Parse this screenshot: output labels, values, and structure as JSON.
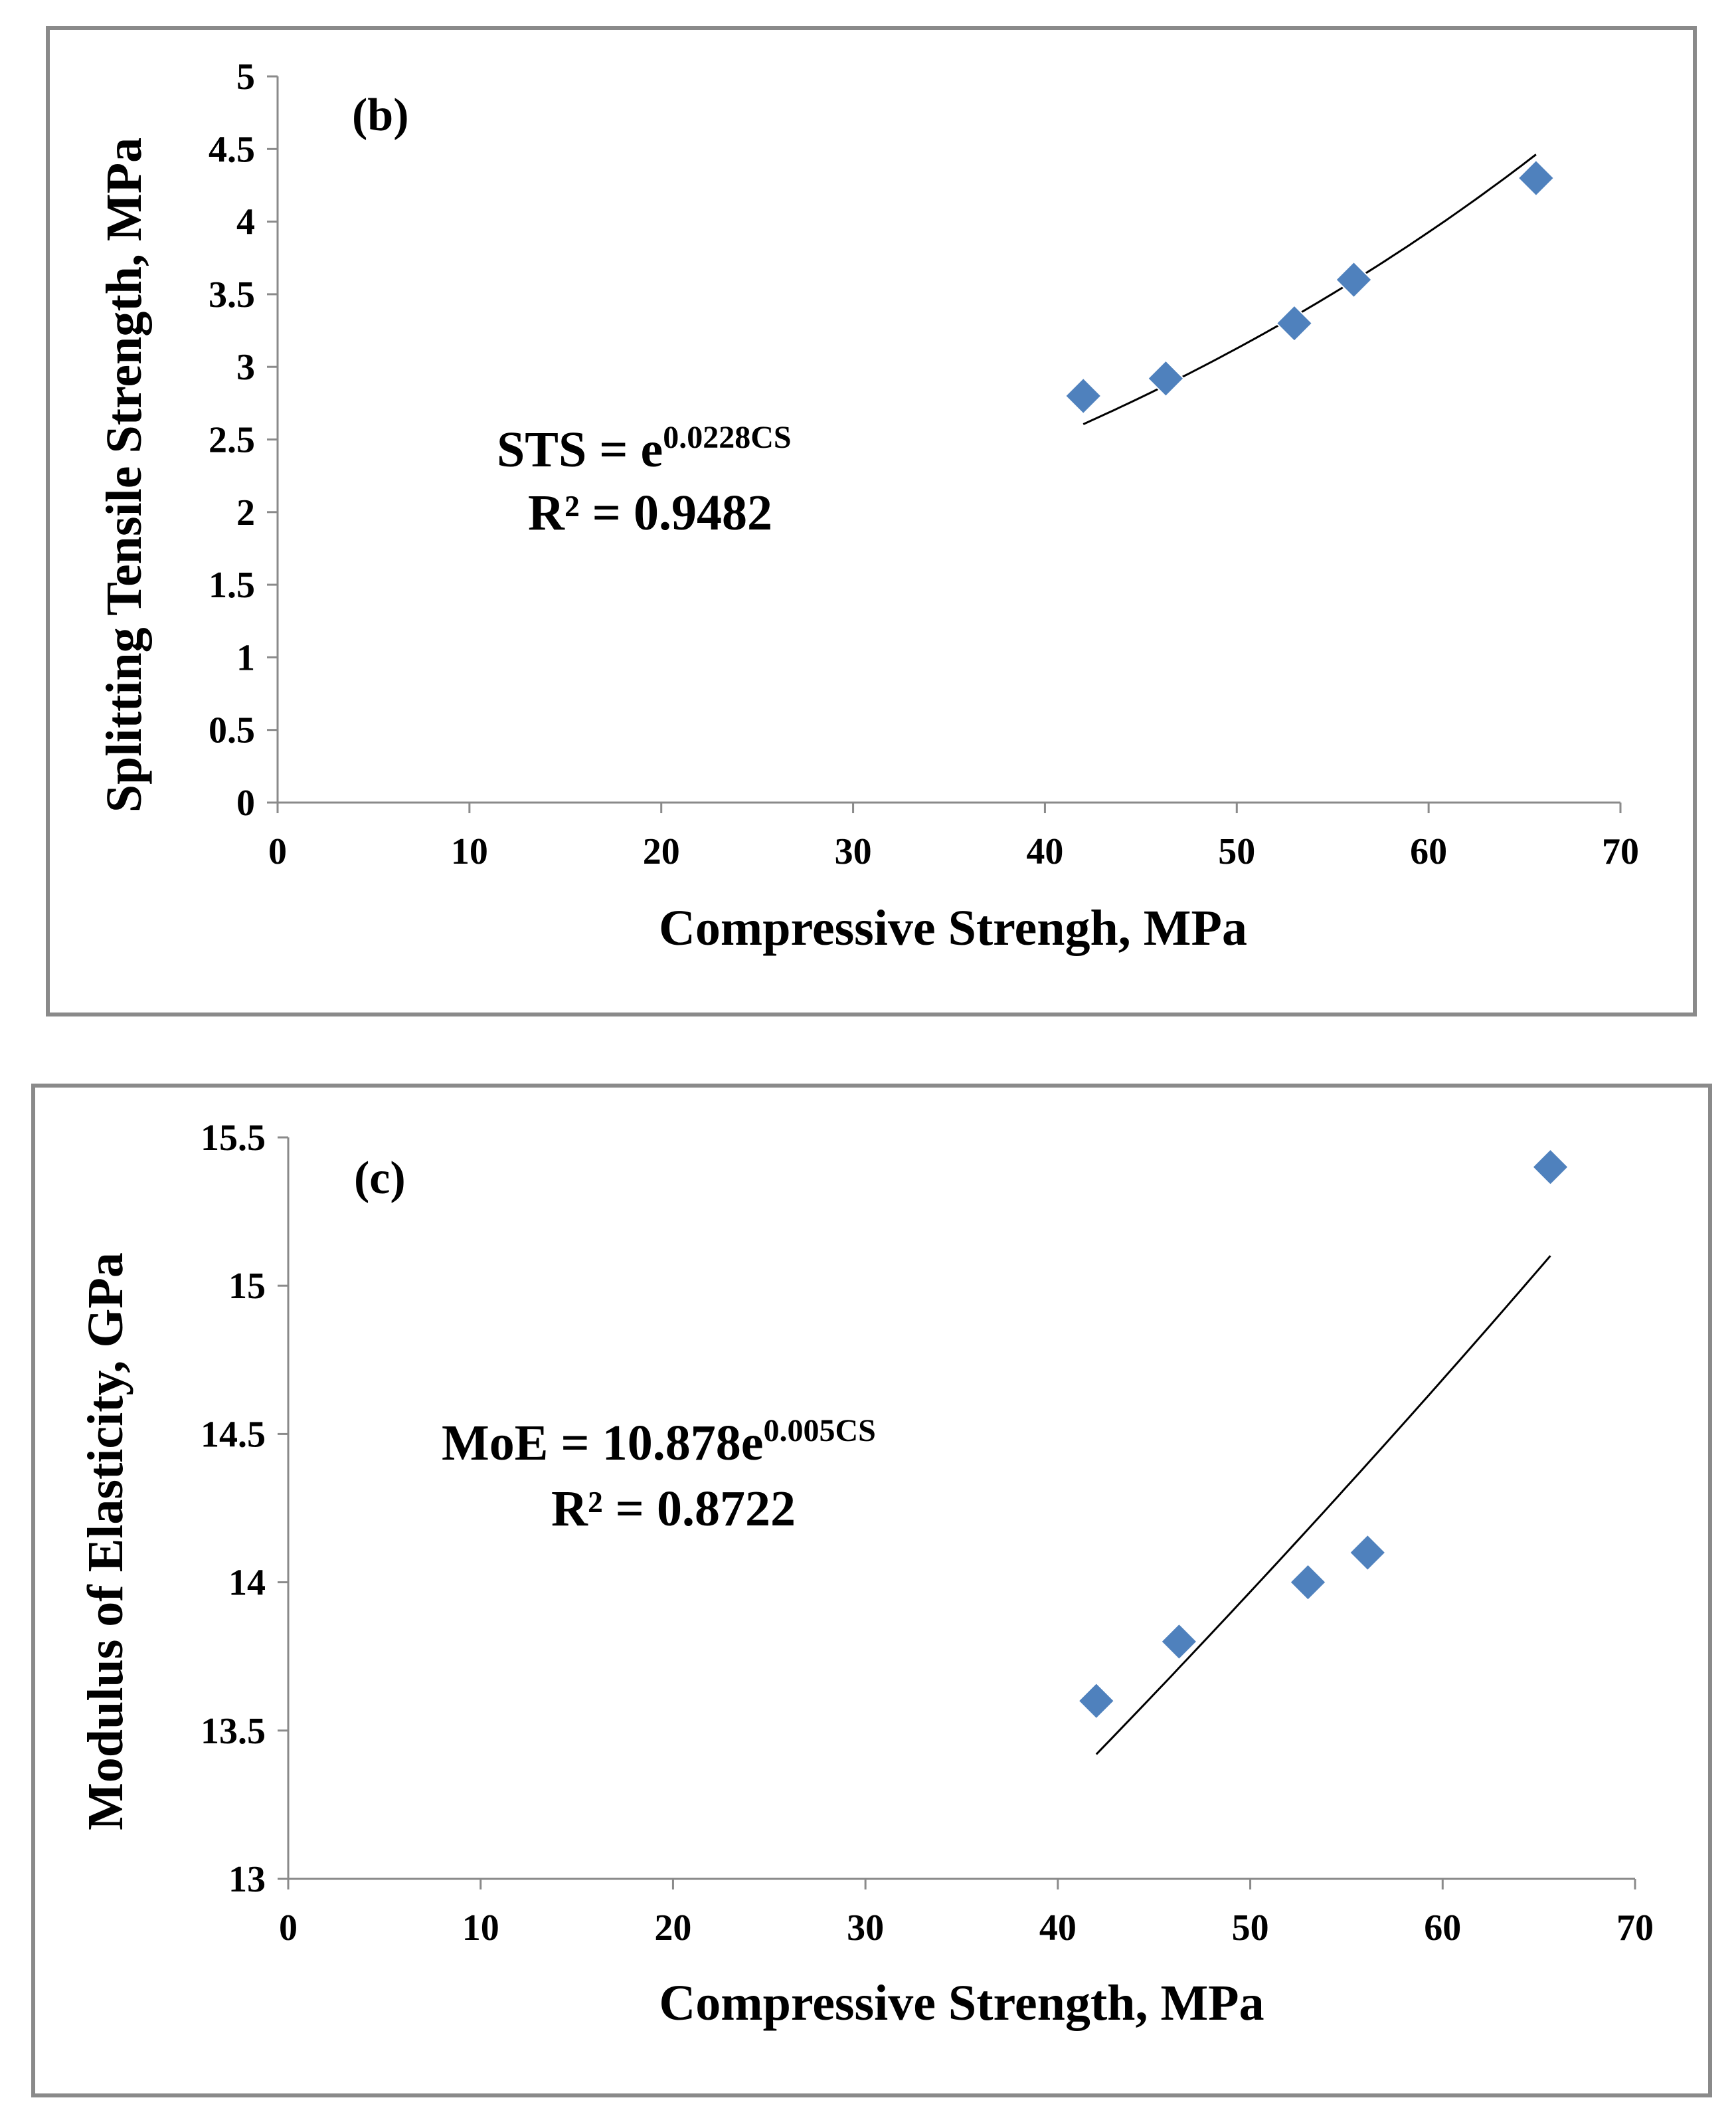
{
  "chart_data": [
    {
      "type": "scatter",
      "panel_label": "(b)",
      "xlabel": "Compressive Strengh, MPa",
      "ylabel": "Splitting Tensile Strength, MPa",
      "xlim": [
        0,
        70
      ],
      "ylim": [
        0,
        5
      ],
      "xticks": [
        0,
        10,
        20,
        30,
        40,
        50,
        60,
        70
      ],
      "xtick_labels": [
        "0",
        "10",
        "20",
        "30",
        "40",
        "50",
        "60",
        "70"
      ],
      "yticks": [
        0,
        0.5,
        1,
        1.5,
        2,
        2.5,
        3,
        3.5,
        4,
        4.5,
        5
      ],
      "ytick_labels": [
        "0",
        "0.5",
        "1",
        "1.5",
        "2",
        "2.5",
        "3",
        "3.5",
        "4",
        "4.5",
        "5"
      ],
      "x": [
        42,
        46.3,
        53,
        56.1,
        65.6
      ],
      "y": [
        2.8,
        2.92,
        3.3,
        3.6,
        4.3
      ],
      "trendline": {
        "type": "exponential",
        "a": 1,
        "b": 0.0228,
        "x_range": [
          42,
          65.6
        ]
      },
      "equation_main": "STS = e",
      "equation_exponent": "0.0228CS",
      "r_squared": "R² = 0.9482",
      "marker_color": "#4f81bd",
      "grid": false,
      "legend": "none"
    },
    {
      "type": "scatter",
      "panel_label": "(c)",
      "xlabel": "Compressive Strength, MPa",
      "ylabel": "Modulus of Elasticity, GPa",
      "xlim": [
        0,
        70
      ],
      "ylim": [
        13,
        15.5
      ],
      "xticks": [
        0,
        10,
        20,
        30,
        40,
        50,
        60,
        70
      ],
      "xtick_labels": [
        "0",
        "10",
        "20",
        "30",
        "40",
        "50",
        "60",
        "70"
      ],
      "yticks": [
        13,
        13.5,
        14,
        14.5,
        15,
        15.5
      ],
      "ytick_labels": [
        "13",
        "13.5",
        "14",
        "14.5",
        "15",
        "15.5"
      ],
      "x": [
        42,
        46.3,
        53,
        56.1,
        65.6
      ],
      "y": [
        13.6,
        13.8,
        14.0,
        14.1,
        15.4
      ],
      "trendline": {
        "type": "exponential",
        "a": 10.878,
        "b": 0.005,
        "x_range": [
          42,
          65.6
        ]
      },
      "equation_main": "MoE = 10.878e",
      "equation_exponent": "0.005CS",
      "r_squared": "R² = 0.8722",
      "marker_color": "#4f81bd",
      "grid": false,
      "legend": "none"
    }
  ]
}
